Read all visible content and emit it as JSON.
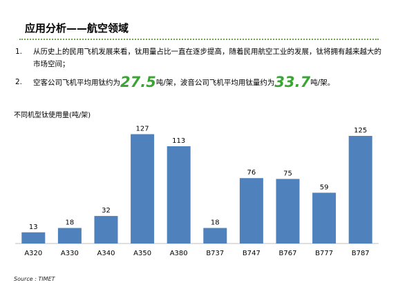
{
  "title": "应用分析——航空领域",
  "bullets": [
    {
      "num": "1.",
      "text": "从历史上的民用飞机发展来看，钛用量占比一直在逐步提高，随着民用航空工业的发展，钛将拥有越来越大的市场空间；"
    },
    {
      "num": "2.",
      "pre": "空客公司飞机平均用钛约为",
      "val1": "27.5",
      "mid": "吨/架，波音公司飞机平均用钛量约为",
      "val2": "33.7",
      "post": "吨/架。"
    }
  ],
  "colors": {
    "bar": "#4f81bd",
    "accent": "#3aa535",
    "rule": "#6aa84f"
  },
  "chart_data": {
    "type": "bar",
    "title": "不同机型钛使用量(吨/架)",
    "categories": [
      "A320",
      "A330",
      "A340",
      "A350",
      "A380",
      "B737",
      "B747",
      "B767",
      "B777",
      "B787"
    ],
    "values": [
      13,
      18,
      32,
      127,
      113,
      18,
      76,
      75,
      59,
      125
    ],
    "ylim": [
      0,
      130
    ],
    "grid": false,
    "legend": "none"
  },
  "source": "Source : TIMET"
}
